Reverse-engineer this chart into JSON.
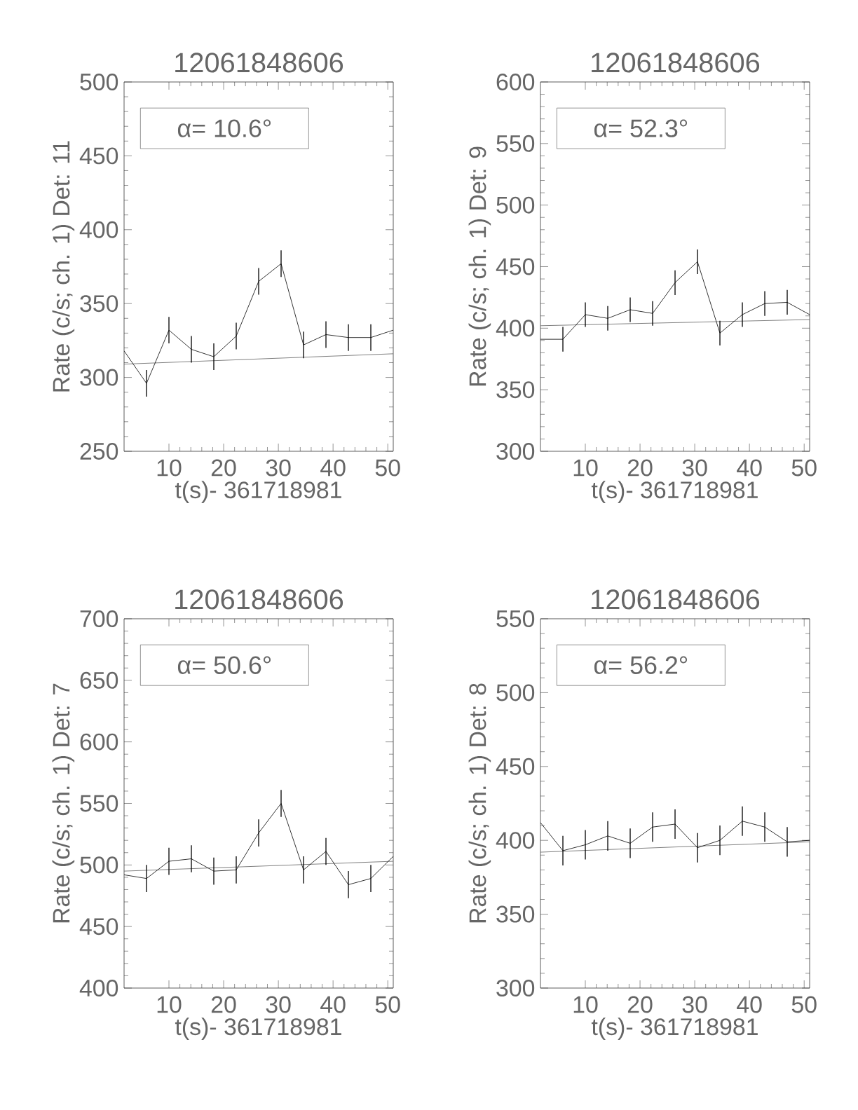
{
  "chart_data": [
    {
      "type": "line",
      "title": "12061848606",
      "xlabel": "t(s)- 361718981",
      "ylabel": "Rate (c/s; ch. 1) Det: 11",
      "annotations": [
        "α= 10.6°"
      ],
      "xlim": [
        1.8,
        51
      ],
      "ylim": [
        250,
        500
      ],
      "xticks": [
        10,
        20,
        30,
        40,
        50
      ],
      "yticks": [
        250,
        300,
        350,
        400,
        450,
        500
      ],
      "series": [
        {
          "color": "#606060",
          "x": [
            1.8,
            51.0
          ],
          "values": [
            309,
            316
          ]
        },
        {
          "color": "#000000",
          "x": [
            1.8,
            5.9,
            10.0,
            14.1,
            18.2,
            22.3,
            26.4,
            30.5,
            34.6,
            38.7,
            42.8,
            46.9,
            51.0
          ],
          "values": [
            318,
            296,
            332,
            319,
            314,
            328,
            365,
            377,
            322,
            329,
            327,
            327,
            332
          ],
          "errors": [
            null,
            9,
            9,
            9,
            9,
            9,
            9,
            9,
            9,
            9,
            9,
            9,
            null
          ]
        }
      ]
    },
    {
      "type": "line",
      "title": "12061848606",
      "xlabel": "t(s)- 361718981",
      "ylabel": "Rate (c/s; ch. 1) Det: 9",
      "annotations": [
        "α= 52.3°"
      ],
      "xlim": [
        1.8,
        51
      ],
      "ylim": [
        300,
        600
      ],
      "xticks": [
        10,
        20,
        30,
        40,
        50
      ],
      "yticks": [
        300,
        350,
        400,
        450,
        500,
        550,
        600
      ],
      "series": [
        {
          "color": "#606060",
          "x": [
            1.8,
            51.0
          ],
          "values": [
            402,
            407
          ]
        },
        {
          "color": "#000000",
          "x": [
            1.8,
            5.9,
            10.0,
            14.1,
            18.2,
            22.3,
            26.4,
            30.5,
            34.6,
            38.7,
            42.8,
            46.9,
            51.0
          ],
          "values": [
            391,
            391,
            411,
            408,
            415,
            412,
            437,
            454,
            396,
            411,
            420,
            421,
            411
          ],
          "errors": [
            null,
            10,
            10,
            10,
            10,
            10,
            10,
            10,
            10,
            10,
            10,
            10,
            null
          ]
        }
      ]
    },
    {
      "type": "line",
      "title": "12061848606",
      "xlabel": "t(s)- 361718981",
      "ylabel": "Rate (c/s; ch. 1) Det: 7",
      "annotations": [
        "α= 50.6°"
      ],
      "xlim": [
        1.8,
        51
      ],
      "ylim": [
        400,
        700
      ],
      "xticks": [
        10,
        20,
        30,
        40,
        50
      ],
      "yticks": [
        400,
        450,
        500,
        550,
        600,
        650,
        700
      ],
      "series": [
        {
          "color": "#606060",
          "x": [
            1.8,
            51.0
          ],
          "values": [
            495,
            503
          ]
        },
        {
          "color": "#000000",
          "x": [
            1.8,
            5.9,
            10.0,
            14.1,
            18.2,
            22.3,
            26.4,
            30.5,
            34.6,
            38.7,
            42.8,
            46.9,
            51.0
          ],
          "values": [
            492,
            489,
            503,
            505,
            495,
            496,
            526,
            550,
            496,
            511,
            484,
            489,
            507
          ],
          "errors": [
            null,
            11,
            11,
            11,
            11,
            11,
            11,
            11,
            11,
            11,
            11,
            11,
            null
          ]
        }
      ]
    },
    {
      "type": "line",
      "title": "12061848606",
      "xlabel": "t(s)- 361718981",
      "ylabel": "Rate (c/s; ch. 1) Det: 8",
      "annotations": [
        "α= 56.2°"
      ],
      "xlim": [
        1.8,
        51
      ],
      "ylim": [
        300,
        550
      ],
      "xticks": [
        10,
        20,
        30,
        40,
        50
      ],
      "yticks": [
        300,
        350,
        400,
        450,
        500,
        550
      ],
      "series": [
        {
          "color": "#606060",
          "x": [
            1.8,
            51.0
          ],
          "values": [
            392,
            399
          ]
        },
        {
          "color": "#000000",
          "x": [
            1.8,
            5.9,
            10.0,
            14.1,
            18.2,
            22.3,
            26.4,
            30.5,
            34.6,
            38.7,
            42.8,
            46.9,
            51.0
          ],
          "values": [
            412,
            393,
            397,
            403,
            398,
            409,
            411,
            395,
            400,
            413,
            409,
            399,
            400
          ],
          "errors": [
            null,
            10,
            10,
            10,
            10,
            10,
            10,
            10,
            10,
            10,
            10,
            10,
            null
          ]
        }
      ]
    }
  ]
}
